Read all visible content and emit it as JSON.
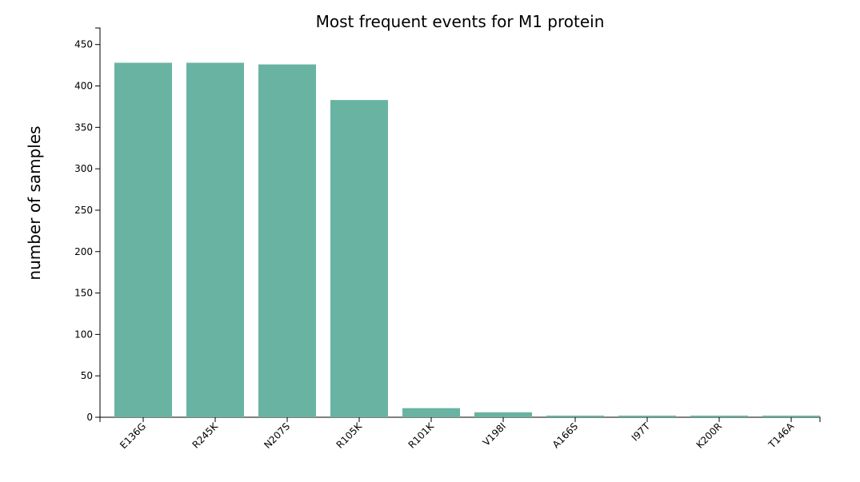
{
  "chart_data": {
    "type": "bar",
    "title": "Most frequent events for M1 protein",
    "xlabel": "",
    "ylabel": "number of samples",
    "categories": [
      "E136G",
      "R245K",
      "N207S",
      "R105K",
      "R101K",
      "V198I",
      "A166S",
      "I97T",
      "K200R",
      "T146A"
    ],
    "values": [
      428,
      428,
      426,
      383,
      11,
      6,
      2,
      2,
      2,
      2
    ],
    "ylim": [
      0,
      470
    ],
    "yticks": [
      0,
      50,
      100,
      150,
      200,
      250,
      300,
      350,
      400,
      450
    ],
    "grid": false,
    "legend": "none",
    "bar_color": "#69b3a2"
  }
}
